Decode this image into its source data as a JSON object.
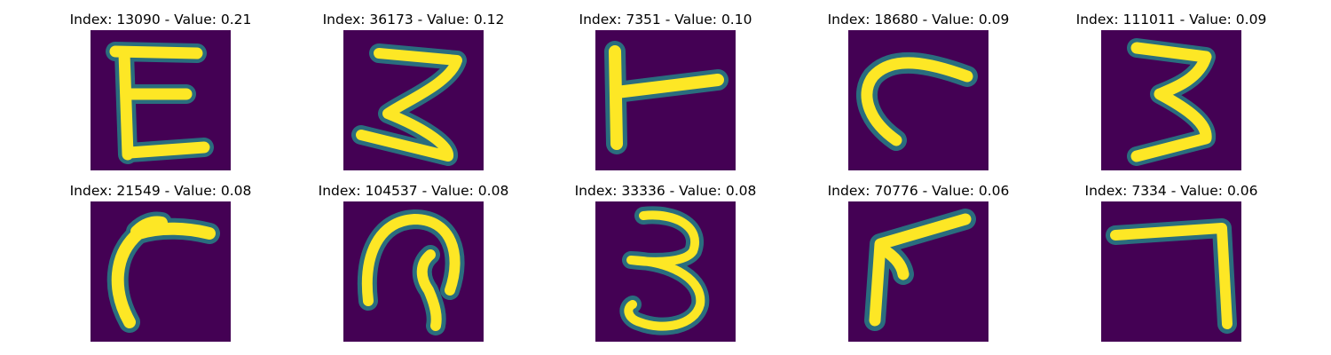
{
  "palette": {
    "background": "#440154",
    "edge": "#21918c",
    "mid": "#5ec962",
    "core": "#fde725"
  },
  "panels": [
    {
      "title": "Index: 13090 - Value: 0.21",
      "glyph": "E-shape"
    },
    {
      "title": "Index: 36173 - Value: 0.12",
      "glyph": "Z-with-curl"
    },
    {
      "title": "Index: 7351 - Value: 0.10",
      "glyph": "r-shape"
    },
    {
      "title": "Index: 18680 - Value: 0.09",
      "glyph": "c-hook"
    },
    {
      "title": "Index: 111011 - Value: 0.09",
      "glyph": "3-shape"
    },
    {
      "title": "Index: 21549 - Value: 0.08",
      "glyph": "r-curve"
    },
    {
      "title": "Index: 104537 - Value: 0.08",
      "glyph": "loop-shape"
    },
    {
      "title": "Index: 33336 - Value: 0.08",
      "glyph": "3-digit"
    },
    {
      "title": "Index: 70776 - Value: 0.06",
      "glyph": "v-slash"
    },
    {
      "title": "Index: 7334 - Value: 0.06",
      "glyph": "7-shape"
    }
  ]
}
